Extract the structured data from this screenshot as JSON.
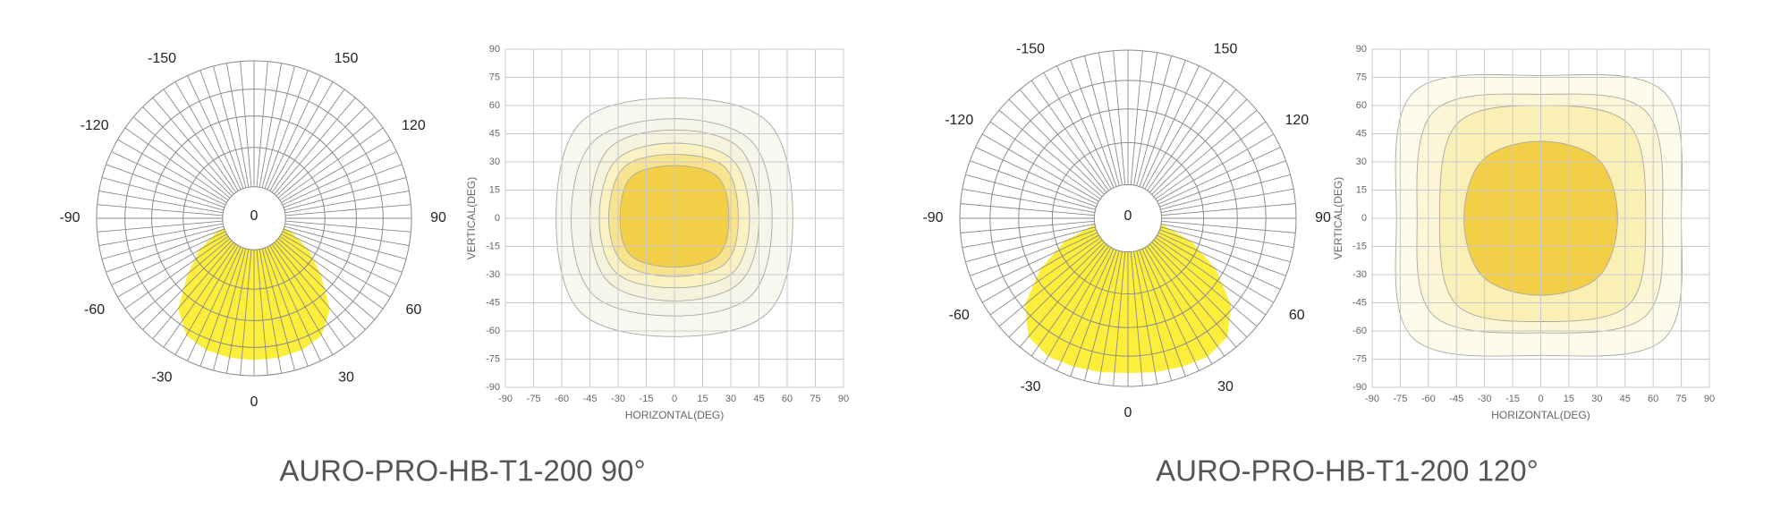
{
  "chart_data": [
    {
      "type": "polar",
      "color": "#fcee3b",
      "theta": [
        -90,
        -80,
        -70,
        -60,
        -50,
        -40,
        -30,
        -20,
        -10,
        0,
        10,
        20,
        30,
        40,
        50,
        60,
        70,
        80,
        90
      ],
      "values": [
        0,
        12,
        25,
        40,
        55,
        75,
        86,
        89,
        90,
        90,
        90,
        89,
        86,
        75,
        55,
        40,
        25,
        12,
        0
      ],
      "rlim": [
        0,
        100
      ],
      "rgrid": [
        20,
        45,
        65,
        82,
        100
      ],
      "rticks": [
        0
      ],
      "thetaticks": [
        -150,
        -120,
        -90,
        -60,
        -30,
        0,
        30,
        60,
        90,
        120,
        150
      ]
    },
    {
      "type": "contour",
      "xlabel": "HORIZONTAL(DEG)",
      "ylabel": "VERTICAL(DEG)",
      "xlim": [
        -90,
        90
      ],
      "ylim": [
        -90,
        90
      ],
      "grid": true,
      "xticks": [
        -90,
        -75,
        -60,
        -45,
        -30,
        -15,
        0,
        15,
        30,
        45,
        60,
        75,
        90
      ],
      "yticks": [
        -90,
        -75,
        -60,
        -45,
        -30,
        -15,
        0,
        15,
        30,
        45,
        60,
        75,
        90
      ],
      "series": [
        {
          "color": "#f8f7f0",
          "x": [
            63,
            50,
            0,
            -50,
            -63,
            -50,
            0,
            50
          ],
          "y": [
            0,
            51,
            64,
            51,
            0,
            -50,
            -63,
            -50
          ]
        },
        {
          "color": "#f6f5ea",
          "x": [
            52,
            41,
            0,
            -43,
            -55,
            -43,
            0,
            41
          ],
          "y": [
            0,
            41,
            53,
            41,
            0,
            -41,
            -52,
            -41
          ]
        },
        {
          "color": "#f5f2de",
          "x": [
            45,
            35,
            0,
            -35,
            -45,
            -35,
            0,
            35
          ],
          "y": [
            0,
            37,
            47,
            37,
            0,
            -34,
            -44,
            -34
          ]
        },
        {
          "color": "#fbf2c4",
          "x": [
            40,
            31,
            0,
            -31,
            -40,
            -31,
            0,
            31
          ],
          "y": [
            0,
            31,
            40,
            31,
            0,
            -29,
            -37,
            -29
          ]
        },
        {
          "color": "#f8e48e",
          "x": [
            34,
            27,
            0,
            -27,
            -35,
            -27,
            0,
            27
          ],
          "y": [
            0,
            27,
            34,
            27,
            0,
            -24,
            -31,
            -24
          ]
        },
        {
          "color": "#f3cf48",
          "x": [
            29,
            23,
            0,
            -23,
            -29,
            -23,
            0,
            23
          ],
          "y": [
            0,
            22,
            28,
            22,
            0,
            -20,
            -26,
            -20
          ]
        }
      ]
    },
    {
      "type": "polar",
      "color": "#fcee3b",
      "theta": [
        -90,
        -80,
        -70,
        -60,
        -50,
        -40,
        -30,
        -20,
        -10,
        0,
        10,
        20,
        30,
        40,
        50,
        60,
        70,
        80,
        90
      ],
      "values": [
        0,
        20,
        40,
        60,
        80,
        92,
        95,
        94,
        93,
        92,
        93,
        94,
        95,
        92,
        80,
        60,
        40,
        20,
        0
      ],
      "rlim": [
        0,
        100
      ],
      "rgrid": [
        20,
        45,
        65,
        82,
        100
      ],
      "rticks": [
        0
      ],
      "thetaticks": [
        -150,
        -120,
        -90,
        -60,
        -30,
        0,
        30,
        60,
        90,
        120,
        150
      ]
    },
    {
      "type": "contour",
      "xlabel": "HORIZONTAL(DEG)",
      "ylabel": "VERTICAL(DEG)",
      "xlim": [
        -90,
        90
      ],
      "ylim": [
        -90,
        90
      ],
      "grid": true,
      "xticks": [
        -90,
        -75,
        -60,
        -45,
        -30,
        -15,
        0,
        15,
        30,
        45,
        60,
        75,
        90
      ],
      "yticks": [
        -90,
        -75,
        -60,
        -45,
        -30,
        -15,
        0,
        15,
        30,
        45,
        60,
        75,
        90
      ],
      "series": [
        {
          "color": "#fdfbea",
          "x": [
            75,
            66,
            0,
            -68,
            -77,
            -68,
            0,
            66
          ],
          "y": [
            0,
            67,
            76,
            67,
            0,
            -64,
            -73,
            -64
          ]
        },
        {
          "color": "#fcf6d6",
          "x": [
            65,
            56,
            0,
            -57,
            -66,
            -57,
            0,
            56
          ],
          "y": [
            0,
            57,
            66,
            57,
            0,
            -52,
            -61,
            -52
          ]
        },
        {
          "color": "#faefb4",
          "x": [
            56,
            47,
            0,
            -45,
            -54,
            -45,
            0,
            47
          ],
          "y": [
            0,
            50,
            60,
            50,
            0,
            -46,
            -55,
            -46
          ]
        },
        {
          "color": "#f3cf48",
          "x": [
            41,
            31,
            0,
            -31,
            -41,
            -31,
            0,
            31
          ],
          "y": [
            0,
            31,
            41,
            31,
            0,
            -31,
            -41,
            -31
          ]
        }
      ]
    }
  ],
  "captions": [
    "AURO-PRO-HB-T1-200 90°",
    "AURO-PRO-HB-T1-200 120°"
  ]
}
